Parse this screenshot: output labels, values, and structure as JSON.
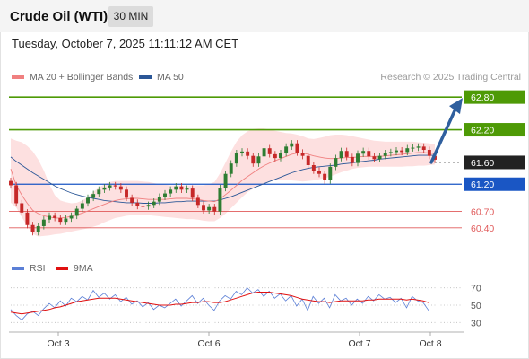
{
  "header": {
    "title": "Crude Oil (WTI)",
    "timeframe": "30 MIN",
    "datetime": "Tuesday, October 7, 2025 11:11:12 AM CET"
  },
  "legend": {
    "ma20_label": "MA 20 + Bollinger Bands",
    "ma50_label": "MA 50",
    "credit": "Research © 2025 Trading Central",
    "rsi_label": "RSI",
    "rsi_ma_label": "9MA"
  },
  "colors": {
    "resistance": "#4e9a06",
    "support": "#1a56c4",
    "current": "#222222",
    "weak_support": "#e05a5a",
    "ma20": "#f08080",
    "ma50": "#2b5797",
    "arrow": "#2f5f9e",
    "bands": "#fde0e0",
    "candle_up": "#2e7d32",
    "candle_down": "#c62828",
    "rsi": "#5b7fd6",
    "rsi_ma": "#e01010"
  },
  "chart_data": [
    {
      "type": "candlestick",
      "title": "Crude Oil (WTI)",
      "timeframe": "30 MIN",
      "x_tick_labels": [
        "Oct 3",
        "Oct 6",
        "Oct 7",
        "Oct 8"
      ],
      "ylim": [
        60.1,
        63.0
      ],
      "price_levels": [
        {
          "label": "62.80",
          "value": 62.8,
          "role": "resistance"
        },
        {
          "label": "62.20",
          "value": 62.2,
          "role": "resistance"
        },
        {
          "label": "61.60",
          "value": 61.6,
          "role": "current"
        },
        {
          "label": "61.20",
          "value": 61.2,
          "role": "support"
        },
        {
          "label": "60.70",
          "value": 60.7,
          "role": "weak_support"
        },
        {
          "label": "60.40",
          "value": 60.4,
          "role": "weak_support"
        }
      ],
      "trend_arrow": {
        "from_value": 61.6,
        "to_value": 62.8
      },
      "series_close": [
        61.18,
        60.85,
        60.68,
        60.45,
        60.32,
        60.43,
        60.55,
        60.62,
        60.58,
        60.51,
        60.57,
        60.62,
        60.75,
        60.85,
        60.95,
        61.02,
        61.1,
        61.14,
        61.18,
        61.16,
        61.1,
        60.95,
        60.86,
        60.8,
        60.79,
        60.82,
        60.88,
        60.97,
        61.03,
        61.1,
        61.16,
        61.1,
        61.12,
        60.95,
        60.82,
        60.72,
        60.78,
        60.7,
        61.13,
        61.39,
        61.58,
        61.77,
        61.8,
        61.72,
        61.58,
        61.71,
        61.86,
        61.75,
        61.68,
        61.77,
        61.89,
        61.95,
        61.78,
        61.72,
        61.55,
        61.45,
        61.39,
        61.27,
        61.52,
        61.68,
        61.81,
        61.7,
        61.59,
        61.76,
        61.81,
        61.71,
        61.66,
        61.72,
        61.77,
        61.79,
        61.82,
        61.79,
        61.86,
        61.87,
        61.89,
        61.83,
        61.72,
        61.65
      ],
      "ma20": [
        61.48,
        61.18,
        61.0,
        60.85,
        60.72,
        60.66,
        60.62,
        60.6,
        60.58,
        60.58,
        60.59,
        60.61,
        60.64,
        60.67,
        60.71,
        60.75,
        60.79,
        60.83,
        60.87,
        60.9,
        60.92,
        60.93,
        60.94,
        60.94,
        60.93,
        60.92,
        60.92,
        60.92,
        60.92,
        60.93,
        60.94,
        60.94,
        60.94,
        60.93,
        60.92,
        60.9,
        60.89,
        60.88,
        60.93,
        61.01,
        61.09,
        61.18,
        61.27,
        61.34,
        61.41,
        61.48,
        61.54,
        61.59,
        61.63,
        61.67,
        61.71,
        61.75,
        61.77,
        61.77,
        61.75,
        61.72,
        61.7,
        61.68,
        61.67,
        61.67,
        61.68,
        61.69,
        61.69,
        61.7,
        61.71,
        61.71,
        61.71,
        61.71,
        61.72,
        61.73,
        61.74,
        61.75,
        61.76,
        61.77,
        61.78,
        61.78,
        61.77,
        61.76
      ],
      "ma50": [
        61.7,
        61.62,
        61.55,
        61.48,
        61.41,
        61.35,
        61.29,
        61.23,
        61.17,
        61.12,
        61.08,
        61.04,
        61.01,
        60.98,
        60.96,
        60.94,
        60.92,
        60.9,
        60.89,
        60.88,
        60.87,
        60.86,
        60.86,
        60.86,
        60.85,
        60.85,
        60.85,
        60.86,
        60.86,
        60.87,
        60.88,
        60.88,
        60.89,
        60.89,
        60.89,
        60.89,
        60.89,
        60.89,
        60.91,
        60.94,
        60.97,
        61.01,
        61.05,
        61.09,
        61.13,
        61.17,
        61.21,
        61.25,
        61.29,
        61.33,
        61.37,
        61.41,
        61.44,
        61.47,
        61.49,
        61.51,
        61.52,
        61.53,
        61.54,
        61.55,
        61.57,
        61.58,
        61.59,
        61.61,
        61.62,
        61.63,
        61.64,
        61.66,
        61.67,
        61.68,
        61.69,
        61.7,
        61.71,
        61.72,
        61.73,
        61.73,
        61.73,
        61.73
      ],
      "bollinger_upper": [
        62.04,
        62.0,
        61.97,
        61.9,
        61.8,
        61.65,
        61.45,
        61.2,
        61.0,
        60.9,
        60.87,
        60.85,
        60.86,
        60.9,
        60.97,
        61.06,
        61.14,
        61.2,
        61.24,
        61.26,
        61.26,
        61.26,
        61.26,
        61.26,
        61.25,
        61.24,
        61.22,
        61.2,
        61.19,
        61.18,
        61.18,
        61.18,
        61.18,
        61.18,
        61.18,
        61.18,
        61.2,
        61.24,
        61.4,
        61.6,
        61.8,
        61.98,
        62.1,
        62.17,
        62.21,
        62.22,
        62.22,
        62.2,
        62.18,
        62.16,
        62.14,
        62.13,
        62.11,
        62.08,
        62.04,
        62.03,
        62.05,
        62.07,
        62.1,
        62.11,
        62.11,
        62.1,
        62.08,
        62.06,
        62.04,
        62.02,
        62.0,
        61.99,
        61.98,
        61.98,
        61.98,
        61.98,
        61.98,
        61.98,
        61.97,
        61.96,
        61.95,
        61.93
      ],
      "bollinger_lower": [
        60.86,
        60.77,
        60.6,
        60.43,
        60.29,
        60.24,
        60.25,
        60.26,
        60.28,
        60.29,
        60.31,
        60.33,
        60.35,
        60.37,
        60.39,
        60.42,
        60.45,
        60.5,
        60.54,
        60.58,
        60.6,
        60.62,
        60.63,
        60.64,
        60.64,
        60.63,
        60.62,
        60.61,
        60.6,
        60.59,
        60.58,
        60.57,
        60.56,
        60.56,
        60.55,
        60.53,
        60.52,
        60.52,
        60.58,
        60.66,
        60.76,
        60.86,
        60.96,
        61.05,
        61.12,
        61.18,
        61.22,
        61.25,
        61.27,
        61.28,
        61.28,
        61.27,
        61.26,
        61.25,
        61.26,
        61.27,
        61.29,
        61.31,
        61.34,
        61.38,
        61.42,
        61.45,
        61.48,
        61.5,
        61.51,
        61.52,
        61.52,
        61.52,
        61.52,
        61.52,
        61.52,
        61.52,
        61.53,
        61.53,
        61.54,
        61.54,
        61.55,
        61.56
      ]
    },
    {
      "type": "line",
      "title": "RSI",
      "y_tick_labels": [
        "70",
        "50",
        "30"
      ],
      "ylim": [
        20,
        80
      ],
      "series": [
        {
          "name": "RSI",
          "values": [
            45,
            38,
            33,
            40,
            43,
            38,
            46,
            52,
            47,
            55,
            49,
            58,
            54,
            60,
            56,
            67,
            59,
            64,
            57,
            62,
            54,
            59,
            51,
            55,
            48,
            53,
            45,
            50,
            47,
            52,
            57,
            49,
            55,
            61,
            52,
            58,
            50,
            44,
            55,
            61,
            57,
            66,
            62,
            70,
            64,
            68,
            60,
            66,
            58,
            63,
            55,
            61,
            49,
            57,
            44,
            60,
            52,
            58,
            47,
            62,
            55,
            58,
            50,
            57,
            52,
            60,
            55,
            62,
            57,
            59,
            53,
            58,
            47,
            60,
            55,
            53,
            44
          ]
        },
        {
          "name": "9MA",
          "values": [
            42,
            41,
            40,
            41,
            42,
            43,
            44,
            45,
            47,
            48,
            50,
            52,
            54,
            55,
            56,
            57,
            58,
            58,
            58,
            58,
            57,
            56,
            55,
            54,
            53,
            52,
            51,
            50,
            50,
            50,
            51,
            51,
            52,
            53,
            53,
            54,
            54,
            53,
            53,
            54,
            56,
            58,
            60,
            62,
            64,
            65,
            65,
            65,
            64,
            63,
            62,
            61,
            59,
            57,
            56,
            55,
            54,
            54,
            53,
            54,
            55,
            55,
            55,
            55,
            55,
            56,
            56,
            57,
            57,
            57,
            57,
            57,
            56,
            57,
            56,
            55,
            53
          ]
        }
      ]
    }
  ]
}
